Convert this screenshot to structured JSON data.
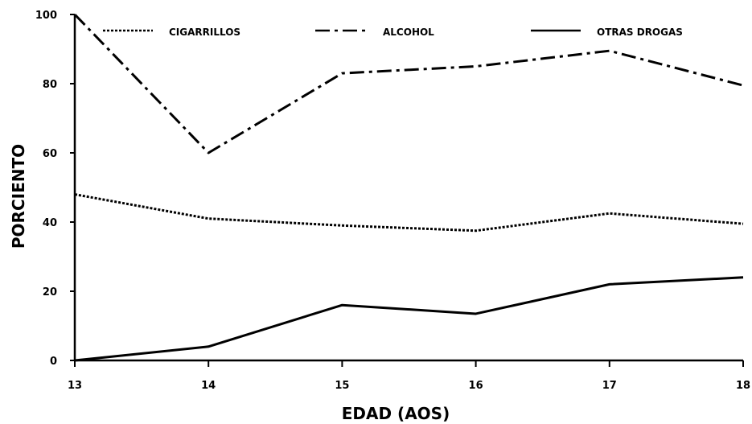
{
  "chart_data": {
    "type": "line",
    "title": "",
    "xlabel": "EDAD (AOS)",
    "ylabel": "PORCIENTO",
    "x": [
      13,
      14,
      15,
      16,
      17,
      18
    ],
    "x_tick_labels": [
      "13",
      "14",
      "15",
      "16",
      "17",
      "18"
    ],
    "y_tick_labels": [
      "0",
      "20",
      "40",
      "60",
      "80",
      "100"
    ],
    "y_ticks": [
      0,
      20,
      40,
      60,
      80,
      100
    ],
    "xlim": [
      13,
      18
    ],
    "ylim": [
      0,
      100
    ],
    "grid": false,
    "legend_position": "top",
    "series": [
      {
        "name": "CIGARRILLOS",
        "style": "dotted",
        "color": "#000000",
        "values": [
          48,
          41,
          39,
          37.5,
          42.5,
          39.5
        ]
      },
      {
        "name": "ALCOHOL",
        "style": "dash-dot",
        "color": "#000000",
        "values": [
          100,
          60,
          83,
          85,
          89.5,
          79.5
        ]
      },
      {
        "name": "OTRAS DROGAS",
        "style": "solid",
        "color": "#000000",
        "values": [
          0,
          4,
          16,
          13.5,
          22,
          24
        ]
      }
    ]
  }
}
